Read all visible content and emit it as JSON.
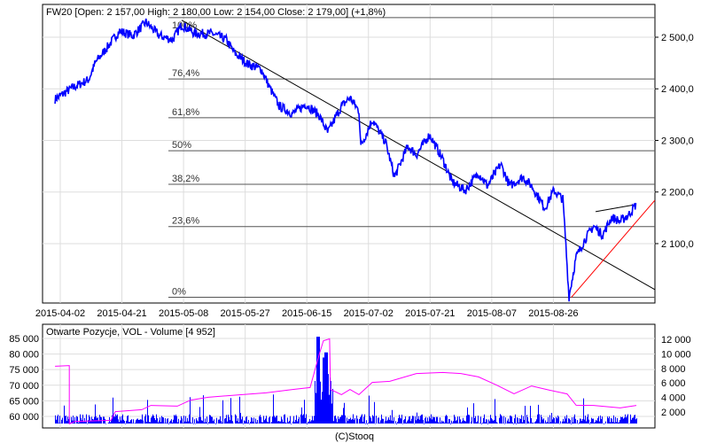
{
  "chart_data": [
    {
      "type": "line",
      "title": "FW20 [Open: 2 157,00  High: 2 180,00  Low: 2 154,00  Close: 2 179,00] (+1,8%)",
      "x_tick_labels": [
        "2015-04-02",
        "2015-04-21",
        "2015-05-08",
        "2015-05-27",
        "2015-06-15",
        "2015-07-02",
        "2015-07-21",
        "2015-08-07",
        "2015-08-26"
      ],
      "y_tick_labels": [
        "2 100,0",
        "2 200,0",
        "2 300,0",
        "2 400,0",
        "2 500,0"
      ],
      "y_ticks": [
        2100,
        2200,
        2300,
        2400,
        2500
      ],
      "ylim": [
        1992,
        2545
      ],
      "x_unit": "trading day index from 2015-04-02, labels every 13 days",
      "series": [
        {
          "name": "FW20",
          "color": "#0000ff",
          "points": [
            [
              -1.1,
              2380
            ],
            [
              2.2,
              2400
            ],
            [
              6,
              2418
            ],
            [
              7.5,
              2452
            ],
            [
              9.7,
              2478
            ],
            [
              12.5,
              2512
            ],
            [
              15.3,
              2503
            ],
            [
              18.1,
              2529
            ],
            [
              20.9,
              2503
            ],
            [
              23.7,
              2495
            ],
            [
              25.6,
              2524
            ],
            [
              28.4,
              2507
            ],
            [
              32.1,
              2507
            ],
            [
              35,
              2495
            ],
            [
              36.8,
              2469
            ],
            [
              39.6,
              2448
            ],
            [
              42.4,
              2438
            ],
            [
              44.3,
              2400
            ],
            [
              46.2,
              2366
            ],
            [
              49,
              2352
            ],
            [
              51.8,
              2370
            ],
            [
              54.6,
              2349
            ],
            [
              56.4,
              2315
            ],
            [
              59.3,
              2366
            ],
            [
              61.1,
              2383
            ],
            [
              63,
              2357
            ],
            [
              63.4,
              2289
            ],
            [
              65.8,
              2340
            ],
            [
              68.6,
              2297
            ],
            [
              70.5,
              2229
            ],
            [
              73.3,
              2289
            ],
            [
              75.1,
              2272
            ],
            [
              77.9,
              2311
            ],
            [
              80.7,
              2263
            ],
            [
              82.6,
              2220
            ],
            [
              85.4,
              2203
            ],
            [
              88.2,
              2237
            ],
            [
              90.1,
              2212
            ],
            [
              92.9,
              2254
            ],
            [
              94.8,
              2212
            ],
            [
              97.6,
              2229
            ],
            [
              99.4,
              2212
            ],
            [
              102.2,
              2169
            ],
            [
              104.1,
              2203
            ],
            [
              106,
              2186
            ],
            [
              106.5,
              2117
            ],
            [
              107.3,
              1997
            ],
            [
              108.8,
              2074
            ],
            [
              110.7,
              2109
            ],
            [
              112.5,
              2134
            ],
            [
              114.4,
              2117
            ],
            [
              116.3,
              2151
            ],
            [
              118.1,
              2143
            ],
            [
              120,
              2157
            ],
            [
              121.5,
              2177
            ]
          ]
        }
      ],
      "fibonacci": [
        {
          "label": "100%",
          "price": 2538
        },
        {
          "label": "76,4%",
          "price": 2419
        },
        {
          "label": "61,8%",
          "price": 2344
        },
        {
          "label": "50%",
          "price": 2280
        },
        {
          "label": "38,2%",
          "price": 2215
        },
        {
          "label": "23,6%",
          "price": 2133
        },
        {
          "label": "0%",
          "price": 1996
        }
      ],
      "trendlines": [
        {
          "color": "#000000",
          "from": [
            25.6,
            2533
          ],
          "to": [
            125.4,
            2011
          ]
        },
        {
          "color": "#ff0000",
          "from": [
            107.8,
            1996
          ],
          "to": [
            125.4,
            2184
          ]
        },
        {
          "color": "#000000",
          "from": [
            112.9,
            2162
          ],
          "to": [
            121.5,
            2176
          ]
        }
      ]
    },
    {
      "type": "bar",
      "title": "Otwarte Pozycje, VOL - Volume [4 952]",
      "left_tick_labels": [
        "60 000",
        "65 000",
        "70 000",
        "75 000",
        "80 000",
        "85 000"
      ],
      "left_ticks": [
        60000,
        65000,
        70000,
        75000,
        80000,
        85000
      ],
      "right_tick_labels": [
        "2 000",
        "4 000",
        "6 000",
        "8 000",
        "10 000",
        "12 000"
      ],
      "right_ticks": [
        2000,
        4000,
        6000,
        8000,
        10000,
        12000
      ],
      "open_interest": {
        "name": "Otwarte Pozycje",
        "color": "#ff00ff",
        "points": [
          [
            -1.1,
            76190
          ],
          [
            1.9,
            76190
          ],
          [
            1.9,
            57730
          ],
          [
            3.2,
            58300
          ],
          [
            10.7,
            58860
          ],
          [
            11.6,
            61420
          ],
          [
            17.2,
            62270
          ],
          [
            19.1,
            63410
          ],
          [
            24.7,
            63410
          ],
          [
            27.5,
            65110
          ],
          [
            31.2,
            66250
          ],
          [
            37.8,
            66820
          ],
          [
            43.4,
            67670
          ],
          [
            49,
            68520
          ],
          [
            52.7,
            69370
          ],
          [
            53.6,
            74200
          ],
          [
            54.6,
            79880
          ],
          [
            55.5,
            84140
          ],
          [
            56.8,
            84990
          ],
          [
            57,
            68520
          ],
          [
            59.3,
            67100
          ],
          [
            61.1,
            68520
          ],
          [
            63,
            67100
          ],
          [
            65.8,
            70790
          ],
          [
            69.5,
            71360
          ],
          [
            75.1,
            73630
          ],
          [
            80.7,
            74200
          ],
          [
            84.5,
            73630
          ],
          [
            88.2,
            72780
          ],
          [
            92,
            69940
          ],
          [
            95.7,
            67380
          ],
          [
            99.4,
            69660
          ],
          [
            103.2,
            68520
          ],
          [
            106.9,
            67100
          ],
          [
            108.8,
            63690
          ],
          [
            112.5,
            63410
          ],
          [
            118.1,
            62840
          ],
          [
            121.5,
            63410
          ]
        ]
      },
      "volume_color": "#0000ff",
      "volume_spikes": [
        [
          54.3,
          12500
        ],
        [
          55.5,
          9500
        ],
        [
          56,
          10200
        ],
        [
          0,
          2000
        ]
      ]
    }
  ],
  "footer": "(C)Stooq"
}
